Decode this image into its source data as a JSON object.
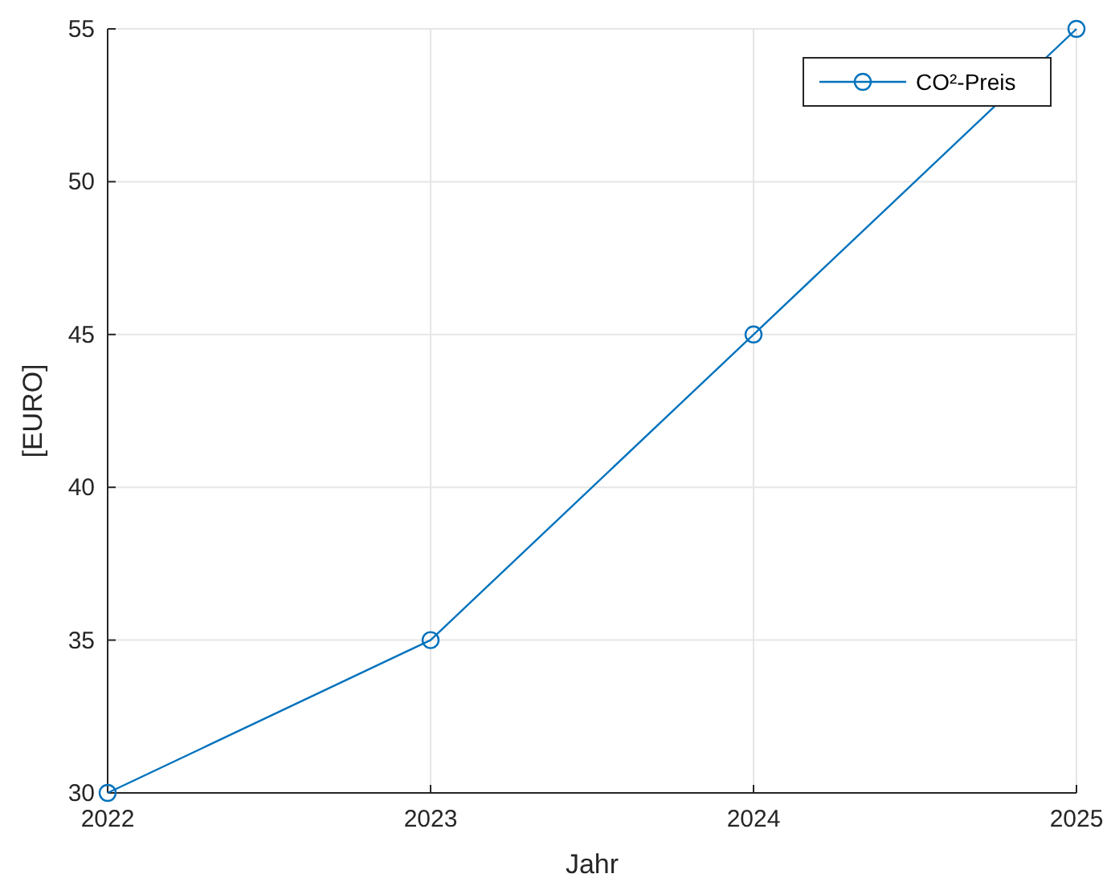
{
  "chart_data": {
    "type": "line",
    "xlabel": "Jahr",
    "ylabel": "[EURO]",
    "x": [
      2022,
      2023,
      2024,
      2025
    ],
    "series": [
      {
        "name": "CO²-Preis",
        "color": "#0072bd",
        "values": [
          30,
          35,
          45,
          55
        ]
      }
    ],
    "xlim": [
      2022,
      2025
    ],
    "xticks": [
      2022,
      2023,
      2024,
      2025
    ],
    "ylim": [
      30,
      55
    ],
    "yticks": [
      30,
      35,
      40,
      45,
      50,
      55
    ],
    "grid": true,
    "legend": "top right",
    "marker": "circle",
    "line_style": "solid"
  }
}
